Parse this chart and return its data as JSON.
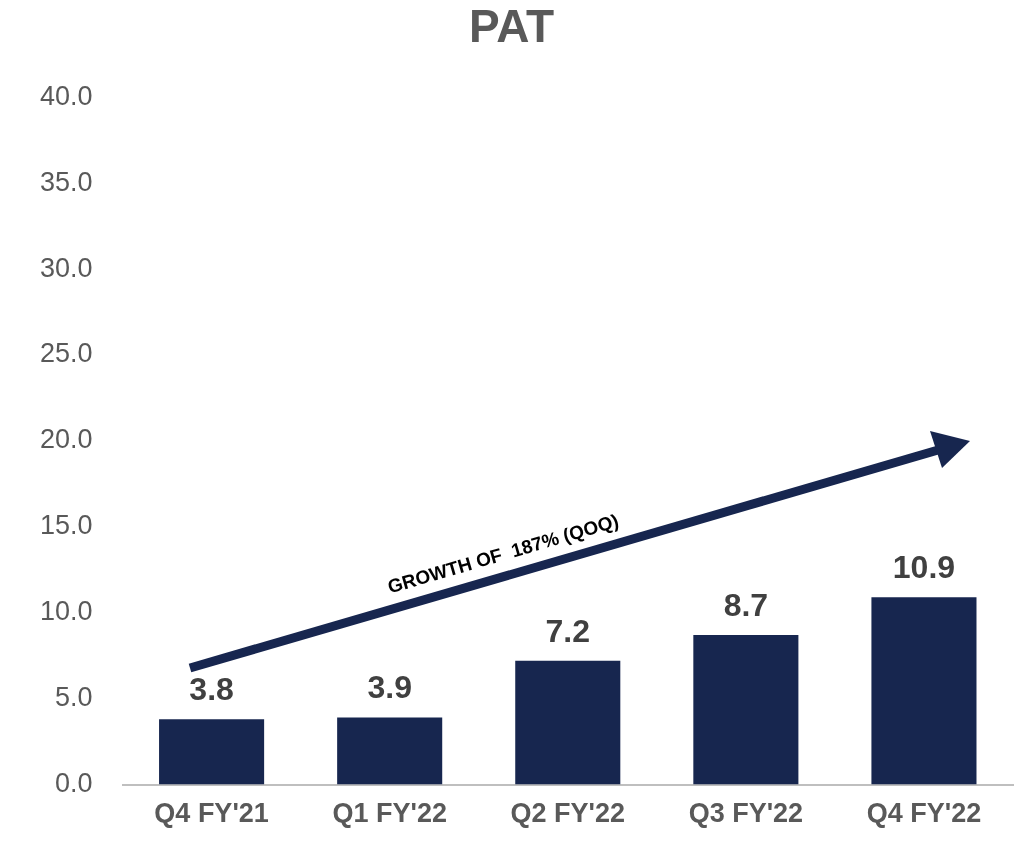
{
  "chart_data": {
    "type": "bar",
    "title": "PAT",
    "categories": [
      "Q4 FY'21",
      "Q1 FY'22",
      "Q2 FY'22",
      "Q3 FY'22",
      "Q4 FY'22"
    ],
    "values": [
      3.8,
      3.9,
      7.2,
      8.7,
      10.9
    ],
    "color": "#17264f",
    "ylim": [
      0,
      40
    ],
    "yticks": [
      {
        "value": 0,
        "label": "0.0"
      },
      {
        "value": 5,
        "label": "5.0"
      },
      {
        "value": 10,
        "label": "10.0"
      },
      {
        "value": 15,
        "label": "15.0"
      },
      {
        "value": 20,
        "label": "20.0"
      },
      {
        "value": 25,
        "label": "25.0"
      },
      {
        "value": 30,
        "label": "30.0"
      },
      {
        "value": 35,
        "label": "35.0"
      },
      {
        "value": 40,
        "label": "40.0"
      }
    ],
    "grid": false,
    "legend": false,
    "data_labels": true,
    "annotations": [
      "GROWTH OF  187% (QOQ)"
    ]
  }
}
